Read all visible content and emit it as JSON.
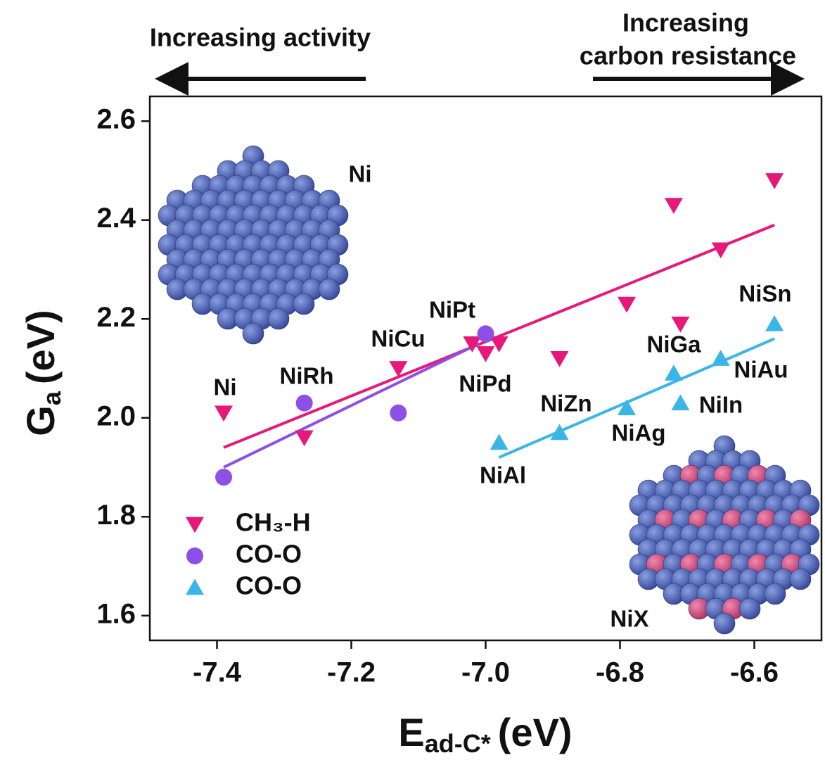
{
  "chart_data": {
    "type": "scatter",
    "x_label": {
      "main": "E",
      "sub": "ad-C*",
      "unit": "(eV)"
    },
    "y_label": {
      "main": "G",
      "sub": "a",
      "unit": "(eV)"
    },
    "xlim": [
      -7.5,
      -6.5
    ],
    "xticks": [
      -7.4,
      -7.2,
      {
        "value": -7.0,
        "label": "-7.0"
      },
      -6.8,
      -6.6
    ],
    "ylim": [
      1.55,
      2.65
    ],
    "yticks": [
      2.6,
      2.4,
      2.2,
      {
        "value": 2.0,
        "label": "2.0"
      },
      1.8,
      1.6
    ],
    "legend": "lower left",
    "series": [
      {
        "name": "CH₃-H",
        "color": "#e6197a",
        "marker": "triangle-down",
        "x": [
          -7.39,
          -7.27,
          -7.13,
          -7.02,
          -7.0,
          -6.98,
          -6.89,
          -6.79,
          -6.72,
          -6.71,
          -6.65,
          -6.57
        ],
        "values": [
          2.01,
          1.96,
          2.1,
          2.15,
          2.13,
          2.15,
          2.12,
          2.23,
          2.43,
          2.19,
          2.34,
          2.48
        ],
        "fit": {
          "x": [
            -7.39,
            -6.57
          ],
          "values": [
            1.94,
            2.39
          ]
        }
      },
      {
        "name": "CO-O",
        "color": "#8e4fe6",
        "marker": "circle",
        "x": [
          -7.39,
          -7.27,
          -7.13,
          -7.0
        ],
        "values": [
          1.88,
          2.03,
          2.01,
          2.17
        ],
        "fit": {
          "x": [
            -7.39,
            -7.01
          ],
          "values": [
            1.9,
            2.15
          ]
        }
      },
      {
        "name": "CO-O",
        "color": "#3bb5e8",
        "marker": "triangle-up",
        "x": [
          -6.98,
          -6.89,
          -6.79,
          -6.72,
          -6.71,
          -6.65,
          -6.57
        ],
        "values": [
          1.95,
          1.97,
          2.02,
          2.09,
          2.03,
          2.12,
          2.19
        ],
        "fit": {
          "x": [
            -6.98,
            -6.57
          ],
          "values": [
            1.92,
            2.16
          ]
        }
      }
    ],
    "annotations": [
      "Ni",
      "NiRh",
      "NiCu",
      "NiPt",
      "NiPd",
      "NiZn",
      "NiAl",
      "NiAg",
      "NiGa",
      "NiIn",
      "NiSn",
      "NiAu",
      "Ni",
      "NiX"
    ],
    "arrows": {
      "left": "Increasing activity",
      "right": [
        "Increasing",
        "carbon resistance"
      ]
    }
  }
}
